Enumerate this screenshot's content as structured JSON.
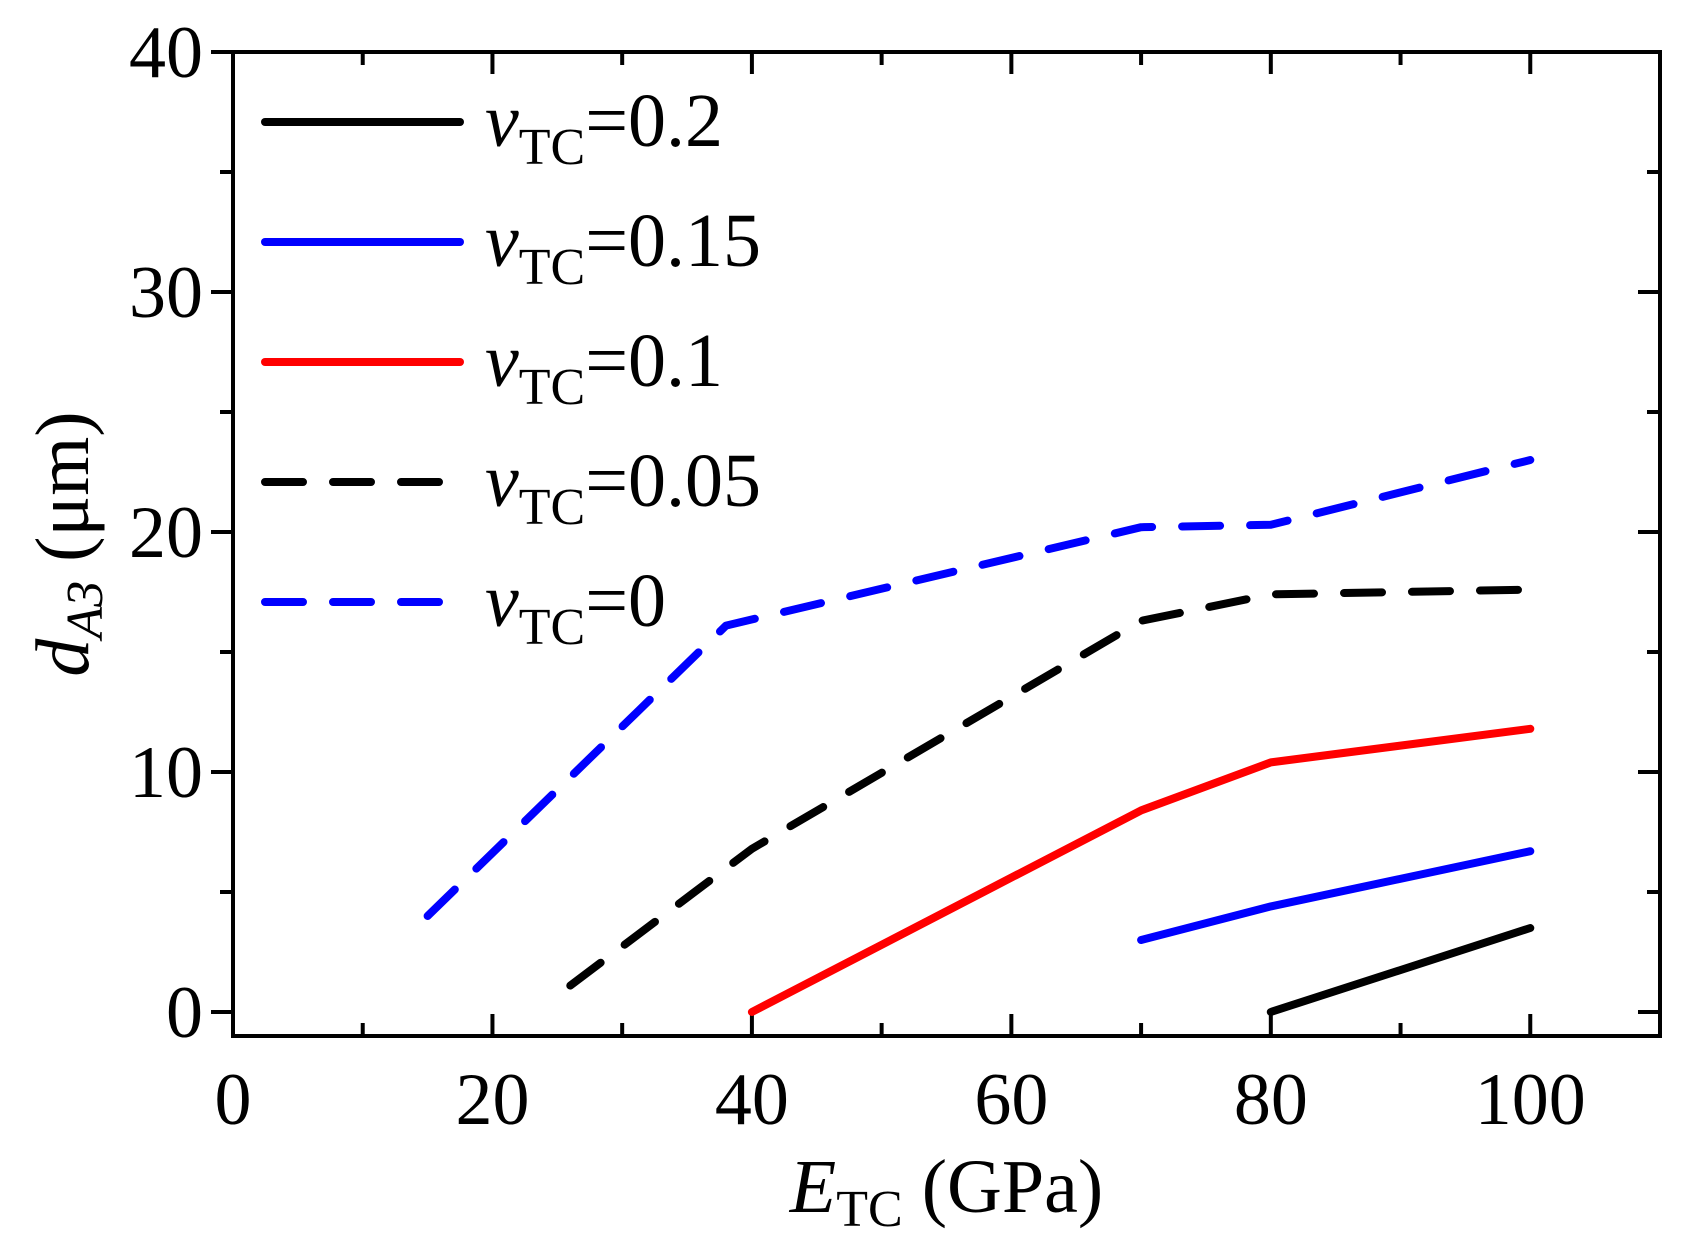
{
  "chart_data": {
    "type": "line",
    "xlabel": {
      "var": "E",
      "sub": "TC",
      "unit": " (GPa)"
    },
    "ylabel": {
      "var": "d",
      "sub": "A3",
      "unit": " (μm)"
    },
    "xlim": [
      0,
      110
    ],
    "ylim": [
      -1,
      40
    ],
    "xticks": [
      0,
      20,
      40,
      60,
      80,
      100
    ],
    "xtick_labels": [
      "0",
      "20",
      "40",
      "60",
      "80",
      "100"
    ],
    "xminor": [
      10,
      30,
      50,
      70,
      90,
      110
    ],
    "yticks": [
      0,
      10,
      20,
      30,
      40
    ],
    "ytick_labels": [
      "0",
      "10",
      "20",
      "30",
      "40"
    ],
    "yminor": [
      5,
      15,
      25,
      35
    ],
    "legend_position": "top-left",
    "series": [
      {
        "name": "vTC=0.2",
        "label_var": "v",
        "label_sub": "TC",
        "label_val": "=0.2",
        "color": "#000000",
        "dash": "solid",
        "x": [
          80,
          100
        ],
        "y": [
          0,
          3.5
        ]
      },
      {
        "name": "vTC=0.15",
        "label_var": "v",
        "label_sub": "TC",
        "label_val": "=0.15",
        "color": "#0000ff",
        "dash": "solid",
        "x": [
          70,
          80,
          100
        ],
        "y": [
          3,
          4.4,
          6.7
        ]
      },
      {
        "name": "vTC=0.1",
        "label_var": "v",
        "label_sub": "TC",
        "label_val": "=0.1",
        "color": "#ff0000",
        "dash": "solid",
        "x": [
          40,
          70,
          80,
          100
        ],
        "y": [
          0,
          8.4,
          10.4,
          11.8
        ]
      },
      {
        "name": "vTC=0.05",
        "label_var": "v",
        "label_sub": "TC",
        "label_val": "=0.05",
        "color": "#000000",
        "dash": "dashed",
        "x": [
          26,
          40,
          70,
          80,
          100
        ],
        "y": [
          1.1,
          6.8,
          16.3,
          17.4,
          17.6
        ]
      },
      {
        "name": "vTC=0",
        "label_var": "v",
        "label_sub": "TC",
        "label_val": "=0",
        "color": "#0000ff",
        "dash": "dashed",
        "x": [
          15,
          38,
          70,
          80,
          100
        ],
        "y": [
          4.0,
          16.1,
          20.2,
          20.3,
          23.0
        ]
      }
    ]
  }
}
